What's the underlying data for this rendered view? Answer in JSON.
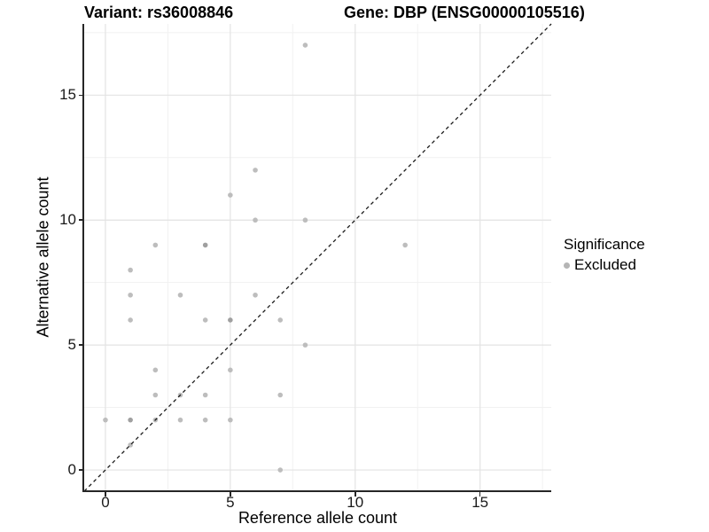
{
  "titles": {
    "variant": "Variant: rs36008846",
    "gene": "Gene: DBP (ENSG00000105516)"
  },
  "chart_data": {
    "type": "scatter",
    "title": "Variant: rs36008846 — Gene: DBP (ENSG00000105516)",
    "xlabel": "Reference allele count",
    "ylabel": "Alternative allele count",
    "xlim": [
      -0.85,
      17.85
    ],
    "ylim": [
      -0.85,
      17.85
    ],
    "x_ticks": [
      0,
      5,
      10,
      15
    ],
    "y_ticks": [
      0,
      5,
      10,
      15
    ],
    "x_minor_ticks": [
      2.5,
      7.5,
      12.5,
      17.5
    ],
    "y_minor_ticks": [
      2.5,
      7.5,
      12.5,
      17.5
    ],
    "grid": "major+minor",
    "identity_line": {
      "style": "dashed",
      "from": [
        -0.85,
        -0.85
      ],
      "to": [
        17.85,
        17.85
      ]
    },
    "series": [
      {
        "name": "Excluded",
        "points": [
          [
            0,
            2
          ],
          [
            1,
            1
          ],
          [
            1,
            2
          ],
          [
            1,
            6
          ],
          [
            1,
            7
          ],
          [
            1,
            8
          ],
          [
            2,
            2
          ],
          [
            2,
            3
          ],
          [
            2,
            4
          ],
          [
            2,
            9
          ],
          [
            3,
            2
          ],
          [
            3,
            3
          ],
          [
            3,
            7
          ],
          [
            4,
            2
          ],
          [
            4,
            3
          ],
          [
            4,
            6
          ],
          [
            4,
            9
          ],
          [
            5,
            2
          ],
          [
            5,
            4
          ],
          [
            5,
            6
          ],
          [
            5,
            11
          ],
          [
            6,
            7
          ],
          [
            6,
            10
          ],
          [
            6,
            12
          ],
          [
            7,
            0
          ],
          [
            7,
            3
          ],
          [
            7,
            6
          ],
          [
            8,
            5
          ],
          [
            8,
            10
          ],
          [
            8,
            17
          ],
          [
            12,
            9
          ]
        ],
        "overplotted_points": [
          [
            1,
            2
          ],
          [
            4,
            9
          ],
          [
            5,
            6
          ]
        ]
      }
    ],
    "legend": {
      "position": "right",
      "title": "Significance",
      "entries": [
        {
          "label": "Excluded",
          "color": "#b5b5b5"
        }
      ]
    }
  },
  "colors": {
    "point": "#bdbdbd",
    "point_overplotted": "#a0a0a0",
    "grid_major": "#e3e3e3",
    "grid_minor": "#f1f1f1",
    "identity_line": "#1a1a1a",
    "axis_line": "#262626",
    "background": "#ffffff"
  }
}
